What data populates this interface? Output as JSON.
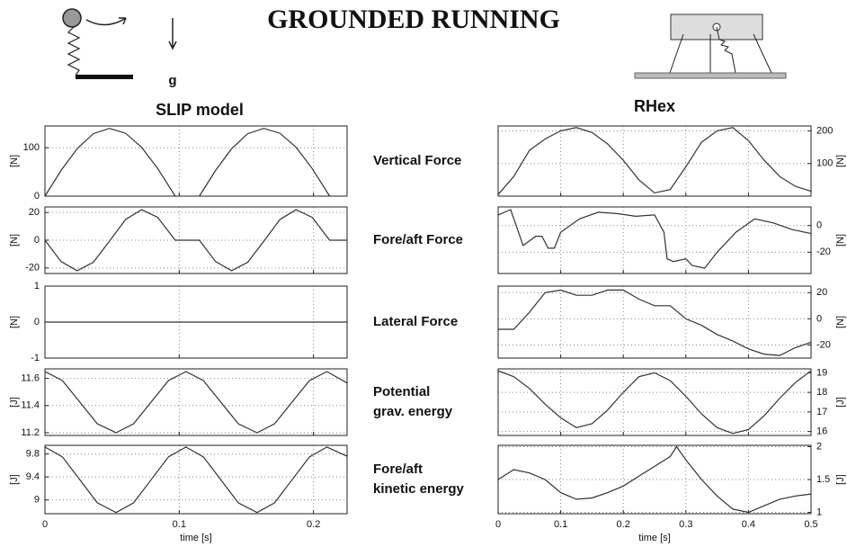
{
  "title": "GROUNDED RUNNING",
  "gravity_label": "g",
  "columns": [
    "SLIP model",
    "RHex"
  ],
  "row_labels": [
    [
      "Vertical Force"
    ],
    [
      "Fore/aft Force"
    ],
    [
      "Lateral Force"
    ],
    [
      "Potential",
      "grav. energy"
    ],
    [
      "Fore/aft",
      "kinetic energy"
    ]
  ],
  "chart_data": [
    {
      "type": "line",
      "ylabel": "[N]",
      "color": "#333333",
      "grid": true,
      "yaxis_side": "left",
      "show_xtick_labels": false,
      "x": [
        0,
        0.012,
        0.024,
        0.036,
        0.048,
        0.06,
        0.072,
        0.084,
        0.097,
        0.106,
        0.115,
        0.127,
        0.139,
        0.151,
        0.163,
        0.175,
        0.187,
        0.199,
        0.212
      ],
      "values": [
        0,
        53,
        98,
        129,
        140,
        130,
        101,
        57,
        0,
        null,
        0,
        53,
        98,
        129,
        140,
        130,
        101,
        57,
        0
      ],
      "xlim": [
        0,
        0.225
      ],
      "xticks": [
        0,
        0.1,
        0.2
      ],
      "ylim": [
        0,
        145
      ],
      "yticks": [
        0,
        100
      ]
    },
    {
      "type": "line",
      "ylabel": "[N]",
      "color": "#333333",
      "grid": true,
      "yaxis_side": "left",
      "show_xtick_labels": false,
      "x": [
        0,
        0.012,
        0.024,
        0.036,
        0.048,
        0.06,
        0.072,
        0.084,
        0.097,
        0.115,
        0.127,
        0.139,
        0.151,
        0.163,
        0.175,
        0.187,
        0.199,
        0.212,
        0.225
      ],
      "values": [
        0,
        -15.4,
        -22,
        -15.9,
        -0.7,
        14.9,
        22,
        16.5,
        0,
        0,
        -15.4,
        -22,
        -15.9,
        -0.7,
        14.9,
        22,
        16.5,
        0,
        0
      ],
      "xlim": [
        0,
        0.225
      ],
      "xticks": [
        0,
        0.1,
        0.2
      ],
      "ylim": [
        -24,
        24
      ],
      "yticks": [
        -20,
        0,
        20
      ]
    },
    {
      "type": "line",
      "ylabel": "[N]",
      "color": "#333333",
      "grid": true,
      "yaxis_side": "left",
      "show_xtick_labels": false,
      "x": [
        0,
        0.225
      ],
      "values": [
        0,
        0
      ],
      "xlim": [
        0,
        0.225
      ],
      "xticks": [
        0,
        0.1,
        0.2
      ],
      "ylim": [
        -1,
        1
      ],
      "yticks": [
        -1,
        0,
        1
      ]
    },
    {
      "type": "line",
      "ylabel": "[J]",
      "color": "#333333",
      "grid": true,
      "yaxis_side": "left",
      "show_xtick_labels": false,
      "x": [
        0,
        0.013,
        0.026,
        0.039,
        0.053,
        0.066,
        0.079,
        0.092,
        0.105,
        0.118,
        0.131,
        0.144,
        0.158,
        0.171,
        0.184,
        0.197,
        0.21,
        0.225
      ],
      "values": [
        11.65,
        11.584,
        11.425,
        11.266,
        11.2,
        11.266,
        11.425,
        11.584,
        11.65,
        11.584,
        11.425,
        11.266,
        11.2,
        11.266,
        11.425,
        11.584,
        11.65,
        11.566
      ],
      "xlim": [
        0,
        0.225
      ],
      "xticks": [
        0,
        0.1,
        0.2
      ],
      "ylim": [
        11.18,
        11.67
      ],
      "yticks": [
        11.2,
        11.4,
        11.6
      ]
    },
    {
      "type": "line",
      "ylabel": "[J]",
      "xlabel": "time [s]",
      "color": "#333333",
      "grid": true,
      "yaxis_side": "left",
      "show_xtick_labels": true,
      "x": [
        0,
        0.013,
        0.026,
        0.039,
        0.053,
        0.066,
        0.079,
        0.092,
        0.105,
        0.118,
        0.131,
        0.144,
        0.158,
        0.171,
        0.184,
        0.197,
        0.21,
        0.225
      ],
      "values": [
        9.92,
        9.75,
        9.35,
        8.95,
        8.78,
        8.95,
        9.35,
        9.75,
        9.92,
        9.75,
        9.35,
        8.95,
        8.78,
        8.95,
        9.35,
        9.75,
        9.92,
        9.76
      ],
      "xlim": [
        0,
        0.225
      ],
      "xticks": [
        0,
        0.1,
        0.2
      ],
      "ylim": [
        8.76,
        9.95
      ],
      "yticks": [
        9,
        9.4,
        9.8
      ]
    },
    {
      "type": "line",
      "ylabel": "[N]",
      "color": "#333333",
      "grid": true,
      "yaxis_side": "right",
      "show_xtick_labels": false,
      "x": [
        0,
        0.025,
        0.05,
        0.075,
        0.1,
        0.125,
        0.15,
        0.175,
        0.2,
        0.225,
        0.25,
        0.275,
        0.3,
        0.325,
        0.35,
        0.375,
        0.4,
        0.425,
        0.45,
        0.475,
        0.5
      ],
      "values": [
        5,
        60,
        140,
        175,
        200,
        210,
        195,
        160,
        110,
        50,
        10,
        20,
        90,
        165,
        200,
        210,
        170,
        110,
        60,
        30,
        15
      ],
      "xlim": [
        0,
        0.5
      ],
      "xticks": [
        0,
        0.1,
        0.2,
        0.3,
        0.4,
        0.5
      ],
      "ylim": [
        0,
        215
      ],
      "yticks": [
        100,
        200
      ]
    },
    {
      "type": "line",
      "ylabel": "[N]",
      "color": "#333333",
      "grid": true,
      "yaxis_side": "right",
      "show_xtick_labels": false,
      "x": [
        0,
        0.02,
        0.04,
        0.06,
        0.07,
        0.08,
        0.09,
        0.1,
        0.13,
        0.16,
        0.19,
        0.22,
        0.25,
        0.265,
        0.27,
        0.28,
        0.3,
        0.31,
        0.33,
        0.35,
        0.38,
        0.41,
        0.44,
        0.47,
        0.5
      ],
      "values": [
        8,
        12,
        -15,
        -8,
        -8,
        -17,
        -17,
        -5,
        5,
        10,
        9,
        7,
        8,
        -5,
        -25,
        -27,
        -25,
        -30,
        -32,
        -20,
        -5,
        5,
        2,
        -3,
        -6
      ],
      "xlim": [
        0,
        0.5
      ],
      "xticks": [
        0,
        0.1,
        0.2,
        0.3,
        0.4,
        0.5
      ],
      "ylim": [
        -36,
        14
      ],
      "yticks": [
        -20,
        0
      ]
    },
    {
      "type": "line",
      "ylabel": "[N]",
      "color": "#333333",
      "grid": true,
      "yaxis_side": "right",
      "show_xtick_labels": false,
      "x": [
        0,
        0.025,
        0.05,
        0.075,
        0.1,
        0.125,
        0.15,
        0.175,
        0.2,
        0.225,
        0.25,
        0.275,
        0.3,
        0.325,
        0.35,
        0.375,
        0.4,
        0.425,
        0.45,
        0.475,
        0.5
      ],
      "values": [
        -8,
        -8,
        5,
        20,
        22,
        18,
        18,
        22,
        22,
        15,
        10,
        10,
        0,
        -5,
        -12,
        -17,
        -23,
        -27,
        -28,
        -22,
        -18
      ],
      "xlim": [
        0,
        0.5
      ],
      "xticks": [
        0,
        0.1,
        0.2,
        0.3,
        0.4,
        0.5
      ],
      "ylim": [
        -30,
        25
      ],
      "yticks": [
        -20,
        0,
        20
      ]
    },
    {
      "type": "line",
      "ylabel": "[J]",
      "color": "#333333",
      "grid": true,
      "yaxis_side": "right",
      "show_xtick_labels": false,
      "x": [
        0,
        0.025,
        0.05,
        0.075,
        0.1,
        0.125,
        0.15,
        0.175,
        0.2,
        0.225,
        0.25,
        0.275,
        0.3,
        0.325,
        0.35,
        0.375,
        0.4,
        0.425,
        0.45,
        0.475,
        0.5
      ],
      "values": [
        19.1,
        18.8,
        18.2,
        17.4,
        16.7,
        16.2,
        16.4,
        17.1,
        18,
        18.8,
        19,
        18.6,
        17.8,
        16.9,
        16.2,
        15.9,
        16.1,
        16.8,
        17.7,
        18.5,
        19.1
      ],
      "xlim": [
        0,
        0.5
      ],
      "xticks": [
        0,
        0.1,
        0.2,
        0.3,
        0.4,
        0.5
      ],
      "ylim": [
        15.8,
        19.2
      ],
      "yticks": [
        16,
        17,
        18,
        19
      ]
    },
    {
      "type": "line",
      "ylabel": "[J]",
      "xlabel": "time [s]",
      "color": "#333333",
      "grid": true,
      "yaxis_side": "right",
      "show_xtick_labels": true,
      "x": [
        0,
        0.025,
        0.05,
        0.075,
        0.1,
        0.125,
        0.15,
        0.175,
        0.2,
        0.225,
        0.25,
        0.275,
        0.285,
        0.3,
        0.325,
        0.35,
        0.375,
        0.4,
        0.425,
        0.45,
        0.475,
        0.5
      ],
      "values": [
        1.5,
        1.65,
        1.6,
        1.5,
        1.3,
        1.2,
        1.22,
        1.3,
        1.4,
        1.55,
        1.7,
        1.85,
        2,
        1.8,
        1.5,
        1.25,
        1.05,
        1,
        1.1,
        1.2,
        1.25,
        1.28
      ],
      "xlim": [
        0,
        0.5
      ],
      "xticks": [
        0,
        0.1,
        0.2,
        0.3,
        0.4,
        0.5
      ],
      "ylim": [
        0.98,
        2.02
      ],
      "yticks": [
        1,
        1.5,
        2
      ]
    }
  ]
}
